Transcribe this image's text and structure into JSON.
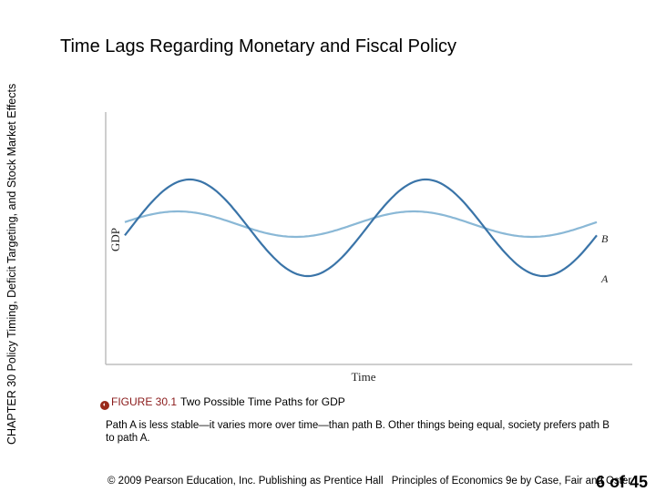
{
  "sidebar_label": "CHAPTER 30  Policy Timing, Deficit Targeting, and Stock Market Effects",
  "title": "Time Lags Regarding Monetary and Fiscal Policy",
  "chart_data": {
    "type": "line",
    "xlabel": "Time",
    "ylabel": "GDP",
    "ticks": "none",
    "grid": false,
    "series": [
      {
        "name": "A",
        "color": "#3a74a8",
        "periods": 2,
        "amplitude": "larger",
        "description_in_image": "less stable path"
      },
      {
        "name": "B",
        "color": "#8ab8d6",
        "periods": 2,
        "amplitude": "smaller",
        "description_in_image": "more stable path"
      }
    ]
  },
  "caption": {
    "figure_number": "FIGURE 30.1",
    "figure_title": "Two Possible Time Paths for GDP",
    "icon": "figure-bullet-icon"
  },
  "description": "Path A is less stable—it varies more over time—than path B. Other things being equal, society prefers path B to path A.",
  "footer": {
    "copyright": "© 2009 Pearson Education, Inc. Publishing as Prentice Hall",
    "book": "Principles of Economics 9e by Case, Fair and Oster"
  },
  "page": "6 of 45"
}
